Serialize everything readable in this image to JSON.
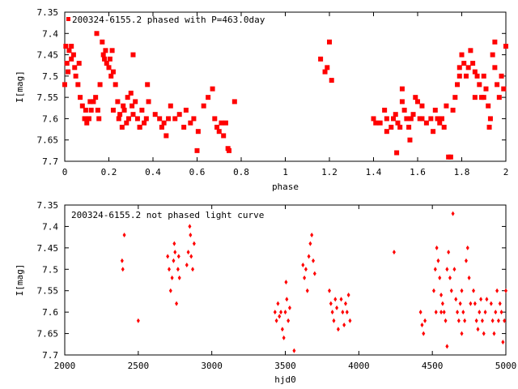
{
  "chart_data": [
    {
      "type": "scatter",
      "title": "200324-6155.2 phased with P=463.0day",
      "xlabel": "phase",
      "ylabel": "I[mag]",
      "xlim": [
        0,
        2
      ],
      "ylim": [
        7.7,
        7.35
      ],
      "y_inverted": true,
      "xticks": [
        "0",
        "0.2",
        "0.4",
        "0.6",
        "0.8",
        "1",
        "1.2",
        "1.4",
        "1.6",
        "1.8",
        "2"
      ],
      "yticks": [
        "7.35",
        "7.4",
        "7.45",
        "7.5",
        "7.55",
        "7.6",
        "7.65",
        "7.7"
      ],
      "grid": false,
      "legend": "top-left",
      "marker": "filled-square",
      "color": "#ff0000",
      "points": [
        [
          0.0,
          7.52
        ],
        [
          0.005,
          7.43
        ],
        [
          0.01,
          7.47
        ],
        [
          0.015,
          7.49
        ],
        [
          0.02,
          7.44
        ],
        [
          0.03,
          7.46
        ],
        [
          0.04,
          7.45
        ],
        [
          0.045,
          7.48
        ],
        [
          0.05,
          7.5
        ],
        [
          0.06,
          7.52
        ],
        [
          0.065,
          7.47
        ],
        [
          0.07,
          7.55
        ],
        [
          0.08,
          7.57
        ],
        [
          0.09,
          7.6
        ],
        [
          0.095,
          7.58
        ],
        [
          0.1,
          7.61
        ],
        [
          0.11,
          7.6
        ],
        [
          0.115,
          7.56
        ],
        [
          0.12,
          7.58
        ],
        [
          0.13,
          7.56
        ],
        [
          0.14,
          7.55
        ],
        [
          0.145,
          7.4
        ],
        [
          0.15,
          7.58
        ],
        [
          0.155,
          7.6
        ],
        [
          0.16,
          7.52
        ],
        [
          0.17,
          7.42
        ],
        [
          0.175,
          7.45
        ],
        [
          0.18,
          7.46
        ],
        [
          0.185,
          7.44
        ],
        [
          0.19,
          7.47
        ],
        [
          0.2,
          7.48
        ],
        [
          0.205,
          7.46
        ],
        [
          0.21,
          7.5
        ],
        [
          0.215,
          7.44
        ],
        [
          0.22,
          7.49
        ],
        [
          0.23,
          7.52
        ],
        [
          0.24,
          7.56
        ],
        [
          0.245,
          7.6
        ],
        [
          0.25,
          7.59
        ],
        [
          0.26,
          7.62
        ],
        [
          0.265,
          7.57
        ],
        [
          0.27,
          7.58
        ],
        [
          0.28,
          7.61
        ],
        [
          0.285,
          7.55
        ],
        [
          0.29,
          7.6
        ],
        [
          0.3,
          7.54
        ],
        [
          0.305,
          7.57
        ],
        [
          0.31,
          7.59
        ],
        [
          0.32,
          7.56
        ],
        [
          0.33,
          7.6
        ],
        [
          0.34,
          7.62
        ],
        [
          0.35,
          7.58
        ],
        [
          0.36,
          7.61
        ],
        [
          0.37,
          7.6
        ],
        [
          0.375,
          7.52
        ],
        [
          0.38,
          7.56
        ],
        [
          0.41,
          7.59
        ],
        [
          0.43,
          7.6
        ],
        [
          0.44,
          7.62
        ],
        [
          0.45,
          7.61
        ],
        [
          0.46,
          7.64
        ],
        [
          0.47,
          7.6
        ],
        [
          0.48,
          7.57
        ],
        [
          0.5,
          7.6
        ],
        [
          0.52,
          7.59
        ],
        [
          0.54,
          7.62
        ],
        [
          0.55,
          7.58
        ],
        [
          0.57,
          7.61
        ],
        [
          0.585,
          7.6
        ],
        [
          0.6,
          7.675
        ],
        [
          0.605,
          7.63
        ],
        [
          0.63,
          7.57
        ],
        [
          0.65,
          7.55
        ],
        [
          0.67,
          7.53
        ],
        [
          0.68,
          7.6
        ],
        [
          0.69,
          7.62
        ],
        [
          0.7,
          7.63
        ],
        [
          0.71,
          7.61
        ],
        [
          0.72,
          7.64
        ],
        [
          0.73,
          7.61
        ],
        [
          0.74,
          7.67
        ],
        [
          0.745,
          7.675
        ],
        [
          0.77,
          7.56
        ],
        [
          0.31,
          7.45
        ],
        [
          0.03,
          7.43
        ],
        [
          0.22,
          7.58
        ],
        [
          0.34,
          7.62
        ],
        [
          1.16,
          7.46
        ],
        [
          1.18,
          7.49
        ],
        [
          1.19,
          7.48
        ],
        [
          1.2,
          7.42
        ],
        [
          1.21,
          7.51
        ],
        [
          1.4,
          7.6
        ],
        [
          1.41,
          7.61
        ],
        [
          1.43,
          7.61
        ],
        [
          1.45,
          7.58
        ],
        [
          1.46,
          7.6
        ],
        [
          1.48,
          7.62
        ],
        [
          1.49,
          7.6
        ],
        [
          1.5,
          7.59
        ],
        [
          1.505,
          7.68
        ],
        [
          1.51,
          7.61
        ],
        [
          1.52,
          7.62
        ],
        [
          1.53,
          7.56
        ],
        [
          1.54,
          7.58
        ],
        [
          1.55,
          7.6
        ],
        [
          1.56,
          7.62
        ],
        [
          1.565,
          7.65
        ],
        [
          1.57,
          7.6
        ],
        [
          1.58,
          7.59
        ],
        [
          1.59,
          7.55
        ],
        [
          1.6,
          7.56
        ],
        [
          1.61,
          7.6
        ],
        [
          1.62,
          7.57
        ],
        [
          1.64,
          7.61
        ],
        [
          1.66,
          7.6
        ],
        [
          1.67,
          7.63
        ],
        [
          1.68,
          7.58
        ],
        [
          1.69,
          7.6
        ],
        [
          1.7,
          7.61
        ],
        [
          1.71,
          7.6
        ],
        [
          1.72,
          7.62
        ],
        [
          1.73,
          7.57
        ],
        [
          1.74,
          7.69
        ],
        [
          1.75,
          7.69
        ],
        [
          1.76,
          7.58
        ],
        [
          1.77,
          7.55
        ],
        [
          1.78,
          7.52
        ],
        [
          1.79,
          7.48
        ],
        [
          1.8,
          7.45
        ],
        [
          1.81,
          7.47
        ],
        [
          1.82,
          7.5
        ],
        [
          1.83,
          7.48
        ],
        [
          1.84,
          7.44
        ],
        [
          1.85,
          7.47
        ],
        [
          1.86,
          7.49
        ],
        [
          1.87,
          7.5
        ],
        [
          1.88,
          7.52
        ],
        [
          1.89,
          7.55
        ],
        [
          1.9,
          7.5
        ],
        [
          1.91,
          7.53
        ],
        [
          1.92,
          7.57
        ],
        [
          1.93,
          7.6
        ],
        [
          1.94,
          7.45
        ],
        [
          1.95,
          7.48
        ],
        [
          1.96,
          7.52
        ],
        [
          1.97,
          7.55
        ],
        [
          1.98,
          7.5
        ],
        [
          1.99,
          7.53
        ],
        [
          2.0,
          7.43
        ],
        [
          1.53,
          7.53
        ],
        [
          1.62,
          7.6
        ],
        [
          1.86,
          7.55
        ],
        [
          1.79,
          7.5
        ],
        [
          1.95,
          7.42
        ],
        [
          1.925,
          7.62
        ],
        [
          1.46,
          7.63
        ],
        [
          1.9,
          7.55
        ]
      ]
    },
    {
      "type": "scatter",
      "title": "200324-6155.2 not phased light curve",
      "xlabel": "hjd0",
      "ylabel": "I[mag]",
      "xlim": [
        2000,
        5000
      ],
      "ylim": [
        7.7,
        7.35
      ],
      "y_inverted": true,
      "xticks": [
        "2000",
        "2500",
        "3000",
        "3500",
        "4000",
        "4500",
        "5000"
      ],
      "yticks": [
        "7.35",
        "7.4",
        "7.45",
        "7.5",
        "7.55",
        "7.6",
        "7.65",
        "7.7"
      ],
      "grid": false,
      "marker": "small-diamond",
      "color": "#ff0000",
      "points": [
        [
          2390,
          7.48
        ],
        [
          2395,
          7.5
        ],
        [
          2405,
          7.42
        ],
        [
          2500,
          7.62
        ],
        [
          2700,
          7.47
        ],
        [
          2710,
          7.5
        ],
        [
          2720,
          7.55
        ],
        [
          2730,
          7.52
        ],
        [
          2740,
          7.48
        ],
        [
          2745,
          7.44
        ],
        [
          2750,
          7.46
        ],
        [
          2760,
          7.58
        ],
        [
          2770,
          7.5
        ],
        [
          2775,
          7.47
        ],
        [
          2780,
          7.52
        ],
        [
          2830,
          7.49
        ],
        [
          2840,
          7.46
        ],
        [
          2850,
          7.4
        ],
        [
          2855,
          7.42
        ],
        [
          2860,
          7.47
        ],
        [
          2870,
          7.5
        ],
        [
          2880,
          7.44
        ],
        [
          3430,
          7.6
        ],
        [
          3440,
          7.62
        ],
        [
          3450,
          7.58
        ],
        [
          3460,
          7.61
        ],
        [
          3470,
          7.6
        ],
        [
          3480,
          7.64
        ],
        [
          3490,
          7.66
        ],
        [
          3500,
          7.6
        ],
        [
          3505,
          7.53
        ],
        [
          3510,
          7.57
        ],
        [
          3520,
          7.62
        ],
        [
          3530,
          7.59
        ],
        [
          3560,
          7.69
        ],
        [
          3620,
          7.49
        ],
        [
          3630,
          7.52
        ],
        [
          3640,
          7.5
        ],
        [
          3650,
          7.55
        ],
        [
          3660,
          7.47
        ],
        [
          3670,
          7.44
        ],
        [
          3680,
          7.42
        ],
        [
          3690,
          7.48
        ],
        [
          3700,
          7.51
        ],
        [
          3800,
          7.55
        ],
        [
          3810,
          7.58
        ],
        [
          3820,
          7.6
        ],
        [
          3830,
          7.62
        ],
        [
          3840,
          7.57
        ],
        [
          3850,
          7.59
        ],
        [
          3860,
          7.64
        ],
        [
          3880,
          7.57
        ],
        [
          3890,
          7.6
        ],
        [
          3900,
          7.63
        ],
        [
          3910,
          7.58
        ],
        [
          3920,
          7.6
        ],
        [
          3930,
          7.56
        ],
        [
          3940,
          7.62
        ],
        [
          4240,
          7.46
        ],
        [
          4420,
          7.6
        ],
        [
          4430,
          7.63
        ],
        [
          4440,
          7.65
        ],
        [
          4450,
          7.62
        ],
        [
          4510,
          7.55
        ],
        [
          4520,
          7.5
        ],
        [
          4530,
          7.45
        ],
        [
          4540,
          7.48
        ],
        [
          4550,
          7.52
        ],
        [
          4560,
          7.56
        ],
        [
          4570,
          7.58
        ],
        [
          4580,
          7.6
        ],
        [
          4590,
          7.62
        ],
        [
          4600,
          7.5
        ],
        [
          4610,
          7.46
        ],
        [
          4620,
          7.52
        ],
        [
          4630,
          7.55
        ],
        [
          4640,
          7.37
        ],
        [
          4650,
          7.5
        ],
        [
          4660,
          7.57
        ],
        [
          4670,
          7.6
        ],
        [
          4680,
          7.62
        ],
        [
          4690,
          7.58
        ],
        [
          4700,
          7.55
        ],
        [
          4710,
          7.6
        ],
        [
          4720,
          7.62
        ],
        [
          4730,
          7.48
        ],
        [
          4740,
          7.45
        ],
        [
          4750,
          7.52
        ],
        [
          4760,
          7.58
        ],
        [
          4780,
          7.55
        ],
        [
          4790,
          7.58
        ],
        [
          4800,
          7.62
        ],
        [
          4810,
          7.64
        ],
        [
          4820,
          7.6
        ],
        [
          4830,
          7.57
        ],
        [
          4840,
          7.62
        ],
        [
          4850,
          7.65
        ],
        [
          4860,
          7.6
        ],
        [
          4870,
          7.57
        ],
        [
          4900,
          7.58
        ],
        [
          4910,
          7.62
        ],
        [
          4920,
          7.65
        ],
        [
          4930,
          7.6
        ],
        [
          4940,
          7.55
        ],
        [
          4950,
          7.62
        ],
        [
          4960,
          7.58
        ],
        [
          4970,
          7.6
        ],
        [
          4980,
          7.67
        ],
        [
          4990,
          7.62
        ],
        [
          5000,
          7.55
        ],
        [
          4600,
          7.68
        ],
        [
          4560,
          7.6
        ],
        [
          4700,
          7.65
        ],
        [
          4525,
          7.6
        ]
      ]
    }
  ]
}
